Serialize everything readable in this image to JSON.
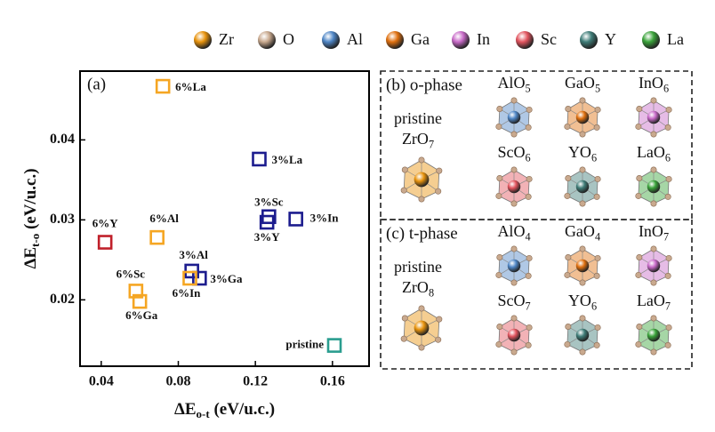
{
  "legend": [
    {
      "name": "Zr",
      "color": "#e8930c"
    },
    {
      "name": "O",
      "color": "#c9a98e"
    },
    {
      "name": "Al",
      "color": "#4f86c6"
    },
    {
      "name": "Ga",
      "color": "#e0700f"
    },
    {
      "name": "In",
      "color": "#c86ac8"
    },
    {
      "name": "Sc",
      "color": "#e2545e"
    },
    {
      "name": "Y",
      "color": "#3f7d78"
    },
    {
      "name": "La",
      "color": "#3aa33a"
    }
  ],
  "chart_data": {
    "type": "scatter",
    "title": "(a)",
    "x_label": {
      "main": "ΔE",
      "sub": "o-t",
      "unit": " (eV/u.c.)"
    },
    "y_label": {
      "main": "ΔE",
      "sub": "t-o",
      "unit": " (eV/u.c.)"
    },
    "xlim": [
      0.029,
      0.179
    ],
    "xticks": [
      0.04,
      0.08,
      0.12,
      0.16
    ],
    "ylim": [
      0.0117,
      0.0486
    ],
    "yticks": [
      0.02,
      0.03,
      0.04
    ],
    "points": [
      {
        "label": "6%La",
        "x": 0.072,
        "y": 0.0467,
        "color": "#f5a623"
      },
      {
        "label": "3%La",
        "x": 0.122,
        "y": 0.0376,
        "color": "#1c1c8e"
      },
      {
        "label": "3%Sc",
        "x": 0.127,
        "y": 0.0304,
        "color": "#1c1c8e"
      },
      {
        "label": "3%Y",
        "x": 0.126,
        "y": 0.0297,
        "color": "#1c1c8e"
      },
      {
        "label": "3%In",
        "x": 0.141,
        "y": 0.0301,
        "color": "#1c1c8e"
      },
      {
        "label": "6%Y",
        "x": 0.042,
        "y": 0.0272,
        "color": "#c0202a"
      },
      {
        "label": "6%Al",
        "x": 0.069,
        "y": 0.0278,
        "color": "#f5a623"
      },
      {
        "label": "3%Al",
        "x": 0.087,
        "y": 0.0236,
        "color": "#1c1c8e"
      },
      {
        "label": "3%Ga",
        "x": 0.091,
        "y": 0.0227,
        "color": "#1c1c8e"
      },
      {
        "label": "6%In",
        "x": 0.086,
        "y": 0.0227,
        "color": "#f5a623"
      },
      {
        "label": "6%Sc",
        "x": 0.058,
        "y": 0.0211,
        "color": "#f5a623"
      },
      {
        "label": "6%Ga",
        "x": 0.06,
        "y": 0.0198,
        "color": "#f5a623"
      },
      {
        "label": "pristine",
        "x": 0.161,
        "y": 0.0143,
        "color": "#2a9d8f"
      }
    ]
  },
  "panels": [
    {
      "title": "(b) o-phase",
      "pristine": {
        "line1": "pristine",
        "base": "ZrO",
        "sub": "7"
      },
      "structures": [
        {
          "base": "AlO",
          "sub": "5"
        },
        {
          "base": "GaO",
          "sub": "5"
        },
        {
          "base": "InO",
          "sub": "6"
        },
        {
          "base": "ScO",
          "sub": "6"
        },
        {
          "base": "YO",
          "sub": "6"
        },
        {
          "base": "LaO",
          "sub": "6"
        }
      ]
    },
    {
      "title": "(c) t-phase",
      "pristine": {
        "line1": "pristine",
        "base": "ZrO",
        "sub": "8"
      },
      "structures": [
        {
          "base": "AlO",
          "sub": "4"
        },
        {
          "base": "GaO",
          "sub": "4"
        },
        {
          "base": "InO",
          "sub": "7"
        },
        {
          "base": "ScO",
          "sub": "7"
        },
        {
          "base": "YO",
          "sub": "6"
        },
        {
          "base": "LaO",
          "sub": "7"
        }
      ]
    }
  ]
}
